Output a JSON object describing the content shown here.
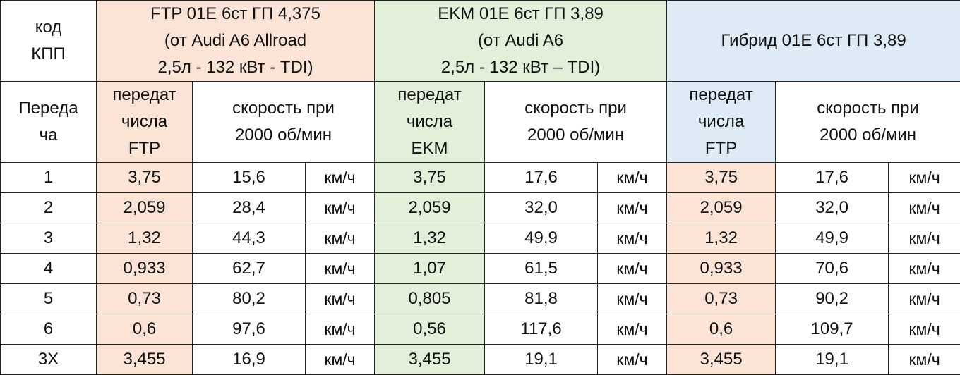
{
  "corner": [
    "код",
    "КПП"
  ],
  "groups": [
    {
      "lines": [
        "FTP 01E 6ст ГП 4,375",
        "(от Audi A6 Allroad",
        "2,5л - 132 кВт - TDI)"
      ],
      "color": "#fbe4d5"
    },
    {
      "lines": [
        "EKM 01E 6ст ГП 3,89",
        "(от Audi A6",
        "2,5л - 132 кВт – TDI)"
      ],
      "color": "#e2efd9"
    },
    {
      "lines": [
        "Гибрид  01E 6ст ГП 3,89"
      ],
      "color": "#deeaf6"
    }
  ],
  "subheader": {
    "gear": [
      "Переда",
      "ча"
    ],
    "ratio_ftp": [
      "передат",
      "числа",
      "FTP"
    ],
    "ratio_ekm": [
      "передат",
      "числа",
      "EKM"
    ],
    "ratio_hyb": [
      "передат",
      "числа",
      "FTP"
    ],
    "speed": [
      "скорость при",
      "2000 об/мин"
    ]
  },
  "unit": "км/ч",
  "rows": [
    {
      "gear": "1",
      "ftp_ratio": "3,75",
      "ftp_speed": "15,6",
      "ekm_ratio": "3,75",
      "ekm_speed": "17,6",
      "hyb_ratio": "3,75",
      "hyb_speed": "17,6"
    },
    {
      "gear": "2",
      "ftp_ratio": "2,059",
      "ftp_speed": "28,4",
      "ekm_ratio": "2,059",
      "ekm_speed": "32,0",
      "hyb_ratio": "2,059",
      "hyb_speed": "32,0"
    },
    {
      "gear": "3",
      "ftp_ratio": "1,32",
      "ftp_speed": "44,3",
      "ekm_ratio": "1,32",
      "ekm_speed": "49,9",
      "hyb_ratio": "1,32",
      "hyb_speed": "49,9"
    },
    {
      "gear": "4",
      "ftp_ratio": "0,933",
      "ftp_speed": "62,7",
      "ekm_ratio": "1,07",
      "ekm_speed": "61,5",
      "hyb_ratio": "0,933",
      "hyb_speed": "70,6"
    },
    {
      "gear": "5",
      "ftp_ratio": "0,73",
      "ftp_speed": "80,2",
      "ekm_ratio": "0,805",
      "ekm_speed": "81,8",
      "hyb_ratio": "0,73",
      "hyb_speed": "90,2"
    },
    {
      "gear": "6",
      "ftp_ratio": "0,6",
      "ftp_speed": "97,6",
      "ekm_ratio": "0,56",
      "ekm_speed": "117,6",
      "hyb_ratio": "0,6",
      "hyb_speed": "109,7"
    },
    {
      "gear": "3X",
      "ftp_ratio": "3,455",
      "ftp_speed": "16,9",
      "ekm_ratio": "3,455",
      "ekm_speed": "19,1",
      "hyb_ratio": "3,455",
      "hyb_speed": "19,1"
    }
  ]
}
